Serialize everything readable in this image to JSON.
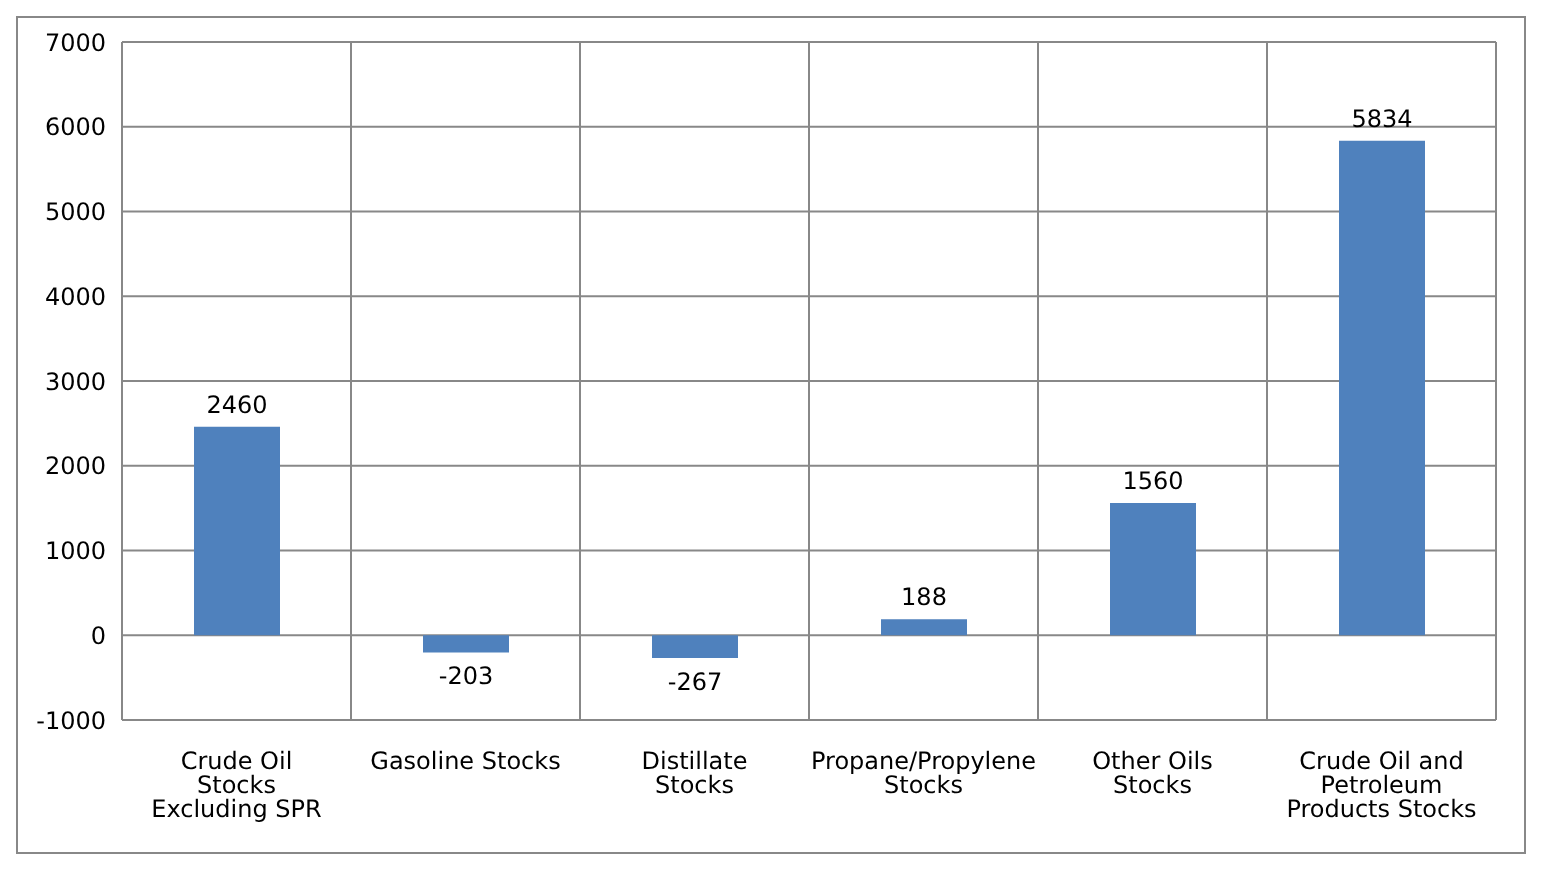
{
  "chart_data": {
    "type": "bar",
    "categories": [
      "Crude Oil Stocks Excluding SPR",
      "Gasoline Stocks",
      "Distillate Stocks",
      "Propane/Propylene Stocks",
      "Other Oils Stocks",
      "Crude Oil and Petroleum Products Stocks"
    ],
    "values": [
      2460,
      -203,
      -267,
      188,
      1560,
      5834
    ],
    "color": "#4f81bd",
    "ylim": [
      -1000,
      7000
    ],
    "yticks": [
      -1000,
      0,
      1000,
      2000,
      3000,
      4000,
      5000,
      6000,
      7000
    ],
    "grid": true,
    "data_labels": true
  }
}
